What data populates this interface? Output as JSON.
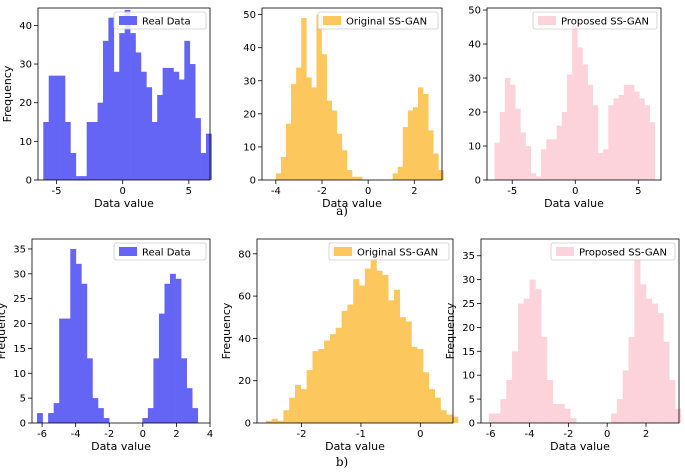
{
  "captions": {
    "a": "a)",
    "b": "b)"
  },
  "colors": {
    "real": "#6464f5",
    "original": "#fcc75c",
    "proposed": "#fdd3db"
  },
  "chart_data": [
    {
      "id": "a1",
      "type": "bar",
      "series_name": "Real Data",
      "color_key": "real",
      "xlabel": "Data value",
      "ylabel": "Frequency",
      "x_range": [
        -6.4,
        6.6
      ],
      "ylim": [
        0,
        44.5
      ],
      "xticks": [
        -5,
        0,
        5
      ],
      "yticks": [
        0,
        10,
        20,
        30,
        40
      ],
      "bin_start": -6.0,
      "bin_width": 0.41,
      "values": [
        15,
        27,
        27,
        27,
        15,
        7,
        1,
        1,
        15,
        15,
        20,
        36,
        42,
        28,
        38,
        44,
        38,
        33,
        28,
        24,
        15,
        22,
        29,
        29,
        28,
        26,
        36,
        30,
        16,
        7,
        12
      ]
    },
    {
      "id": "a2",
      "type": "bar",
      "series_name": "Original SS-GAN",
      "color_key": "original",
      "xlabel": "Data value",
      "ylabel": "",
      "x_range": [
        -4.6,
        3.2
      ],
      "ylim": [
        0,
        52
      ],
      "xticks": [
        -4,
        -2,
        0,
        2
      ],
      "yticks": [
        0,
        10,
        20,
        30,
        40,
        50
      ],
      "bin_start": -4.0,
      "bin_width": 0.22,
      "values": [
        2,
        7,
        17,
        29,
        34,
        49,
        31,
        28,
        50,
        38,
        24,
        21,
        14,
        9,
        3,
        1,
        1,
        0,
        0,
        0,
        0,
        0,
        0,
        2,
        4,
        16,
        21,
        22,
        28,
        26,
        15,
        8,
        3
      ]
    },
    {
      "id": "a3",
      "type": "bar",
      "series_name": "Proposed SS-GAN",
      "color_key": "proposed",
      "xlabel": "Data value",
      "ylabel": "",
      "x_range": [
        -7.0,
        6.8
      ],
      "ylim": [
        0,
        50.6
      ],
      "xticks": [
        -5,
        0,
        5
      ],
      "yticks": [
        0,
        10,
        20,
        30,
        40,
        50
      ],
      "bin_start": -6.4,
      "bin_width": 0.41,
      "values": [
        11,
        20,
        30,
        28,
        21,
        14,
        10,
        2,
        1,
        9,
        12,
        12,
        16,
        20,
        31,
        47,
        39,
        34,
        28,
        22,
        8,
        9,
        22,
        24,
        25,
        28,
        28,
        26,
        24,
        22,
        17
      ]
    },
    {
      "id": "b1",
      "type": "bar",
      "series_name": "Real Data",
      "color_key": "real",
      "xlabel": "Data value",
      "ylabel": "Frequency",
      "x_range": [
        -6.6,
        4.0
      ],
      "ylim": [
        0,
        37
      ],
      "xticks": [
        -6,
        -4,
        -2,
        0,
        2,
        4
      ],
      "yticks": [
        0,
        5,
        10,
        15,
        20,
        25,
        30,
        35
      ],
      "bin_start": -6.3,
      "bin_width": 0.33,
      "values": [
        2,
        0,
        2,
        4,
        21,
        21,
        35,
        32,
        28,
        13,
        5,
        3,
        1,
        0,
        0,
        0,
        0,
        0,
        0,
        1,
        3,
        13,
        22,
        28,
        30,
        29,
        13,
        7,
        3
      ]
    },
    {
      "id": "b2",
      "type": "bar",
      "series_name": "Original SS-GAN",
      "color_key": "original",
      "xlabel": "Data value",
      "ylabel": "Frequency",
      "x_range": [
        -2.75,
        0.55
      ],
      "ylim": [
        0,
        87
      ],
      "xticks": [
        -2,
        -1,
        0
      ],
      "yticks": [
        0,
        20,
        40,
        60,
        80
      ],
      "bin_start": -2.6,
      "bin_width": 0.098,
      "values": [
        1,
        2,
        1,
        6,
        12,
        18,
        16,
        25,
        34,
        35,
        39,
        42,
        45,
        53,
        56,
        68,
        65,
        73,
        80,
        72,
        70,
        58,
        63,
        50,
        48,
        36,
        35,
        24,
        16,
        12,
        6,
        4,
        3
      ]
    },
    {
      "id": "b3",
      "type": "bar",
      "series_name": "Proposed SS-GAN",
      "color_key": "proposed",
      "xlabel": "Data value",
      "ylabel": "Frequency",
      "x_range": [
        -6.5,
        3.7
      ],
      "ylim": [
        0,
        38.5
      ],
      "xticks": [
        -6,
        -4,
        -2,
        0,
        2
      ],
      "yticks": [
        0,
        5,
        10,
        15,
        20,
        25,
        30,
        35
      ],
      "bin_start": -6.1,
      "bin_width": 0.3,
      "values": [
        2,
        2,
        5,
        9,
        15,
        25,
        26,
        30,
        28,
        18,
        9,
        4,
        4,
        3,
        1,
        0,
        0,
        0,
        0,
        0,
        0,
        2,
        5,
        11,
        18,
        36,
        29,
        26,
        25,
        23,
        17,
        9,
        3
      ]
    }
  ]
}
